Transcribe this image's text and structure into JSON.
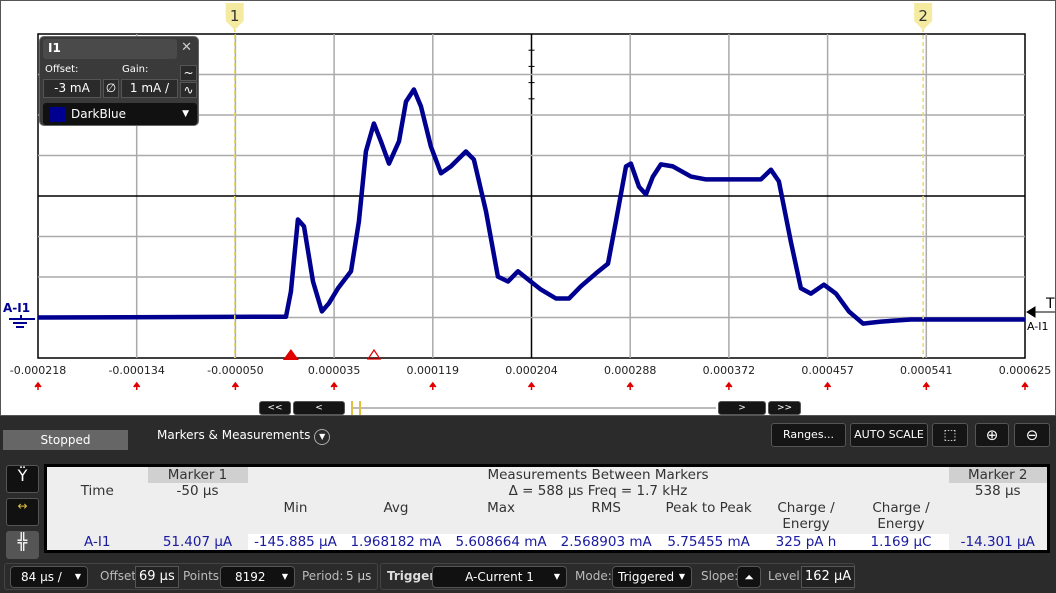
{
  "plot": {
    "x_ticks": [
      "-0.000218",
      "-0.000134",
      "-0.000050",
      "0.000035",
      "0.000119",
      "0.000204",
      "0.000288",
      "0.000372",
      "0.000457",
      "0.000541",
      "0.000625"
    ],
    "channel_label": "A-I1",
    "trigger_label": "T",
    "trigger_channel": "A-I1",
    "marker1_label": "1",
    "marker2_label": "2",
    "marker1_time_us": -50,
    "marker2_time_us": 538,
    "trace_color": "#000090",
    "marker_color": "#e8d870",
    "trace_us_mA": [
      [
        -218,
        0
      ],
      [
        -6.2,
        0.02
      ],
      [
        -2,
        0.64
      ],
      [
        4,
        2.42
      ],
      [
        9.2,
        2.25
      ],
      [
        16.9,
        0.89
      ],
      [
        24.5,
        0.15
      ],
      [
        30.5,
        0.35
      ],
      [
        38.2,
        0.72
      ],
      [
        49.3,
        1.14
      ],
      [
        56.1,
        2.37
      ],
      [
        62.1,
        4.1
      ],
      [
        68.9,
        4.79
      ],
      [
        74.9,
        4.35
      ],
      [
        81.8,
        3.8
      ],
      [
        90.3,
        4.35
      ],
      [
        96.3,
        5.33
      ],
      [
        103.1,
        5.63
      ],
      [
        109.1,
        5.21
      ],
      [
        117.6,
        4.22
      ],
      [
        126.2,
        3.56
      ],
      [
        134.7,
        3.73
      ],
      [
        147.5,
        4.1
      ],
      [
        154.3,
        3.9
      ],
      [
        164.6,
        2.62
      ],
      [
        174.8,
        1.01
      ],
      [
        183.4,
        0.89
      ],
      [
        191.9,
        1.14
      ],
      [
        200.5,
        0.94
      ],
      [
        211.6,
        0.69
      ],
      [
        224.4,
        0.47
      ],
      [
        235.5,
        0.47
      ],
      [
        245.7,
        0.77
      ],
      [
        258.5,
        1.09
      ],
      [
        268.8,
        1.33
      ],
      [
        275.6,
        2.37
      ],
      [
        284.2,
        3.73
      ],
      [
        288.4,
        3.8
      ],
      [
        295.3,
        3.23
      ],
      [
        301.2,
        3.04
      ],
      [
        307.2,
        3.48
      ],
      [
        314,
        3.78
      ],
      [
        324.3,
        3.73
      ],
      [
        339.7,
        3.48
      ],
      [
        352.5,
        3.41
      ],
      [
        399.4,
        3.41
      ],
      [
        408,
        3.65
      ],
      [
        414.8,
        3.36
      ],
      [
        425,
        1.88
      ],
      [
        433.6,
        0.72
      ],
      [
        442.1,
        0.59
      ],
      [
        453.2,
        0.81
      ],
      [
        463.5,
        0.59
      ],
      [
        474.6,
        0.15
      ],
      [
        486.6,
        -0.15
      ],
      [
        501.9,
        -0.1
      ],
      [
        527.5,
        -0.05
      ],
      [
        625,
        -0.05
      ]
    ]
  },
  "channel_panel": {
    "title": "I1",
    "offset_label": "Offset:",
    "gain_label": "Gain:",
    "offset": "-3 mA",
    "gain": "1 mA /",
    "color_name": "DarkBlue",
    "color": "#000090"
  },
  "scroll": {
    "buttons": [
      "<<",
      "<",
      ">",
      ">>"
    ]
  },
  "toolbar": {
    "status": "Stopped",
    "section": "Markers & Measurements",
    "ranges": "Ranges...",
    "autoscale": "AUTO SCALE"
  },
  "table": {
    "time_label": "Time",
    "marker1": "Marker 1",
    "marker1_time": "-50 µs",
    "between": "Measurements Between Markers",
    "delta": "Δ = 588 µs   Freq = 1.7 kHz",
    "marker2": "Marker 2",
    "marker2_time": "538 µs",
    "columns": [
      "Min",
      "Avg",
      "Max",
      "RMS",
      "Peak to Peak",
      "Charge / Energy",
      "Charge / Energy"
    ],
    "row": {
      "channel": "A-I1",
      "marker1": "51.407 µA",
      "values": [
        "-145.885 µA",
        "1.968182 mA",
        "5.608664 mA",
        "2.568903 mA",
        "5.75455 mA",
        "325 pA h",
        "1.169 µC"
      ],
      "marker2": "-14.301 µA"
    }
  },
  "bottom": {
    "timebase": "84 µs /",
    "offset_label": "Offset:",
    "offset": "69 µs",
    "points_label": "Points:",
    "points": "8192",
    "period_label": "Period:",
    "period": "5 µs",
    "trigger_label": "Trigger",
    "trigger_source": "A-Current 1",
    "mode_label": "Mode:",
    "mode": "Triggered",
    "slope_label": "Slope:",
    "level_label": "Level:",
    "level": "162 µA"
  }
}
